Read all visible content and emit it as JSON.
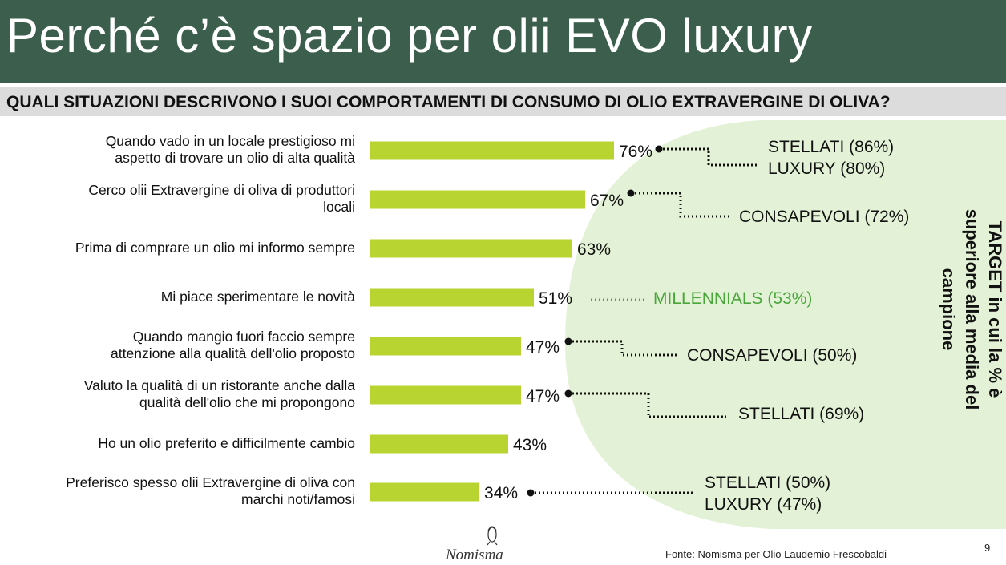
{
  "title": "Perché c’è spazio per olii EVO luxury",
  "subtitle": "QUALI SITUAZIONI DESCRIVONO I SUOI COMPORTAMENTI DI CONSUMO DI OLIO EXTRAVERGINE DI OLIVA?",
  "colors": {
    "header": "#3c5f4d",
    "bar": "#b8d430",
    "highlight_area": "#e3f2d6",
    "millennials": "#4aa63a"
  },
  "chart_data": {
    "type": "bar",
    "orientation": "horizontal",
    "categories": [
      "Quando vado in un locale prestigioso mi aspetto di trovare un olio di alta qualità",
      "Cerco olii Extravergine di oliva di produttori locali",
      "Prima di comprare un olio mi informo sempre",
      "Mi piace sperimentare le novità",
      "Quando mangio fuori faccio sempre attenzione alla qualità  dell'olio proposto",
      "Valuto la qualità di un ristorante  anche dalla qualità dell'olio che mi propongono",
      "Ho un olio preferito e difficilmente cambio",
      "Preferisco spesso olii Extravergine di oliva con marchi noti/famosi"
    ],
    "category_lines": [
      [
        "Quando vado in un locale prestigioso mi",
        "aspetto di trovare un olio di alta qualità"
      ],
      [
        "Cerco olii Extravergine di oliva di produttori",
        "locali"
      ],
      [
        "Prima di comprare un olio mi informo sempre"
      ],
      [
        "Mi piace sperimentare le novità"
      ],
      [
        "Quando mangio fuori faccio sempre",
        "attenzione alla qualità  dell'olio proposto"
      ],
      [
        "Valuto la qualità di un ristorante  anche dalla",
        "qualità dell'olio che mi propongono"
      ],
      [
        "Ho un olio preferito e difficilmente cambio"
      ],
      [
        "Preferisco spesso olii Extravergine di oliva con",
        "marchi noti/famosi"
      ]
    ],
    "values": [
      76,
      67,
      63,
      51,
      47,
      47,
      43,
      34
    ],
    "value_labels": [
      "76%",
      "67%",
      "63%",
      "51%",
      "47%",
      "47%",
      "43%",
      "34%"
    ],
    "unit": "%",
    "annotations": [
      {
        "bar": 0,
        "targets": [
          "STELLATI (86%)",
          "LUXURY (80%)"
        ],
        "style": "elbow"
      },
      {
        "bar": 1,
        "targets": [
          "CONSAPEVOLI (72%)"
        ],
        "style": "elbow"
      },
      {
        "bar": 3,
        "targets": [
          "MILLENNIALS (53%)"
        ],
        "style": "straight-green"
      },
      {
        "bar": 4,
        "targets": [
          "CONSAPEVOLI (50%)"
        ],
        "style": "elbow"
      },
      {
        "bar": 5,
        "targets": [
          "STELLATI (69%)"
        ],
        "style": "elbow"
      },
      {
        "bar": 7,
        "targets": [
          "STELLATI (50%)",
          "LUXURY (47%)"
        ],
        "style": "straight"
      }
    ],
    "target_caption": "TARGET in cui la % è superiore alla media del campione"
  },
  "source": "Fonte: Nomisma per Olio Laudemio Frescobaldi",
  "page_number": "9",
  "logo_text": "Nomisma"
}
